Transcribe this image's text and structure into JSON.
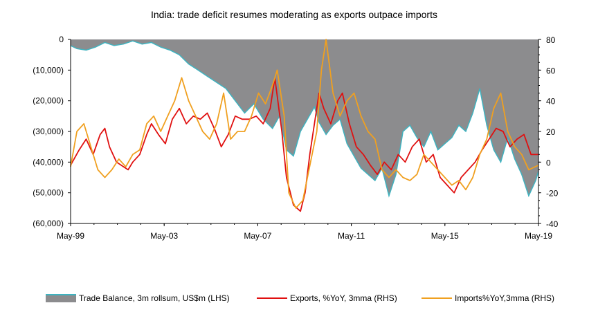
{
  "chart_data": {
    "type": "area+line",
    "title": "India: trade deficit resumes moderating as exports outpace imports",
    "x_tick_labels": [
      "May-99",
      "May-03",
      "May-07",
      "May-11",
      "May-15",
      "May-19"
    ],
    "x_range": [
      1999.33,
      2019.42
    ],
    "left_axis": {
      "ylim": [
        -60000,
        0
      ],
      "tick_values": [
        0,
        -10000,
        -20000,
        -30000,
        -40000,
        -50000,
        -60000
      ],
      "tick_labels": [
        "0",
        "(10,000)",
        "(20,000)",
        "(30,000)",
        "(40,000)",
        "(50,000)",
        "(60,000)"
      ]
    },
    "right_axis": {
      "ylim": [
        -40,
        80
      ],
      "tick_values": [
        80,
        60,
        40,
        20,
        0,
        -20,
        -40
      ],
      "tick_labels": [
        "80",
        "60",
        "40",
        "20",
        "0",
        "-20",
        "-40"
      ]
    },
    "series": [
      {
        "name": "Trade Balance, 3m rollsum, US$m (LHS)",
        "axis": "left",
        "kind": "area",
        "color": "#8c8c8e",
        "edge": "#3fb3c0",
        "x": [
          1999.33,
          1999.6,
          2000.0,
          2000.4,
          2000.8,
          2001.2,
          2001.6,
          2002.0,
          2002.4,
          2002.8,
          2003.2,
          2003.6,
          2004.0,
          2004.4,
          2004.8,
          2005.2,
          2005.6,
          2006.0,
          2006.4,
          2006.8,
          2007.2,
          2007.6,
          2008.0,
          2008.3,
          2008.6,
          2008.9,
          2009.2,
          2009.5,
          2009.8,
          2010.0,
          2010.3,
          2010.6,
          2010.9,
          2011.2,
          2011.5,
          2011.8,
          2012.1,
          2012.4,
          2012.7,
          2013.0,
          2013.3,
          2013.6,
          2013.9,
          2014.2,
          2014.5,
          2014.8,
          2015.1,
          2015.4,
          2015.7,
          2016.0,
          2016.3,
          2016.6,
          2016.9,
          2017.2,
          2017.5,
          2017.8,
          2018.1,
          2018.4,
          2018.7,
          2019.0,
          2019.3,
          2019.42
        ],
        "values": [
          -2000,
          -3000,
          -3500,
          -2500,
          -1000,
          -2000,
          -1500,
          -500,
          -1500,
          -1000,
          -2500,
          -3500,
          -5000,
          -8000,
          -10000,
          -12000,
          -14000,
          -16000,
          -20000,
          -24000,
          -21000,
          -26000,
          -29000,
          -25000,
          -36000,
          -38000,
          -30000,
          -26000,
          -22000,
          -27000,
          -31000,
          -28000,
          -26000,
          -34000,
          -38000,
          -42000,
          -44000,
          -46000,
          -42000,
          -51000,
          -44000,
          -30000,
          -28000,
          -32000,
          -35000,
          -30000,
          -36000,
          -34000,
          -32000,
          -28000,
          -30000,
          -24000,
          -16000,
          -28000,
          -36000,
          -40000,
          -32000,
          -39000,
          -44000,
          -51000,
          -46000,
          -43000
        ]
      },
      {
        "name": "Exports, %YoY, 3mma (RHS)",
        "axis": "right",
        "kind": "line",
        "color": "#e01010",
        "x": [
          1999.33,
          1999.7,
          2000.0,
          2000.3,
          2000.6,
          2000.8,
          2001.0,
          2001.3,
          2001.6,
          2001.8,
          2002.0,
          2002.3,
          2002.6,
          2002.8,
          2003.1,
          2003.4,
          2003.7,
          2004.0,
          2004.3,
          2004.6,
          2004.9,
          2005.2,
          2005.5,
          2005.8,
          2006.1,
          2006.4,
          2006.7,
          2007.0,
          2007.3,
          2007.6,
          2007.9,
          2008.1,
          2008.4,
          2008.6,
          2008.9,
          2009.2,
          2009.4,
          2009.6,
          2009.8,
          2010.0,
          2010.2,
          2010.5,
          2010.8,
          2011.0,
          2011.3,
          2011.6,
          2011.9,
          2012.2,
          2012.5,
          2012.8,
          2013.1,
          2013.4,
          2013.7,
          2014.0,
          2014.3,
          2014.6,
          2014.9,
          2015.2,
          2015.5,
          2015.8,
          2016.1,
          2016.4,
          2016.7,
          2017.0,
          2017.3,
          2017.6,
          2017.9,
          2018.2,
          2018.5,
          2018.8,
          2019.1,
          2019.42
        ],
        "values": [
          -2,
          8,
          15,
          5,
          18,
          22,
          10,
          0,
          -3,
          -5,
          0,
          5,
          18,
          25,
          18,
          12,
          28,
          35,
          25,
          30,
          28,
          32,
          22,
          10,
          18,
          30,
          28,
          28,
          30,
          25,
          35,
          55,
          20,
          -10,
          -28,
          -32,
          -20,
          5,
          25,
          45,
          35,
          25,
          40,
          45,
          25,
          10,
          5,
          -2,
          -8,
          0,
          -5,
          5,
          0,
          10,
          15,
          0,
          5,
          -10,
          -15,
          -20,
          -10,
          -5,
          0,
          8,
          15,
          22,
          20,
          10,
          15,
          18,
          5,
          5
        ]
      },
      {
        "name": "Imports%YoY,3mma (RHS)",
        "axis": "right",
        "kind": "line",
        "color": "#f0a020",
        "x": [
          1999.33,
          1999.6,
          1999.9,
          2000.2,
          2000.5,
          2000.8,
          2001.1,
          2001.4,
          2001.7,
          2002.0,
          2002.3,
          2002.6,
          2002.9,
          2003.2,
          2003.5,
          2003.8,
          2004.1,
          2004.4,
          2004.7,
          2005.0,
          2005.3,
          2005.6,
          2005.9,
          2006.2,
          2006.5,
          2006.8,
          2007.1,
          2007.4,
          2007.7,
          2008.0,
          2008.2,
          2008.5,
          2008.7,
          2009.0,
          2009.3,
          2009.5,
          2009.7,
          2009.9,
          2010.1,
          2010.3,
          2010.6,
          2010.9,
          2011.2,
          2011.5,
          2011.8,
          2012.1,
          2012.4,
          2012.7,
          2013.0,
          2013.3,
          2013.6,
          2013.9,
          2014.2,
          2014.5,
          2014.8,
          2015.1,
          2015.4,
          2015.7,
          2016.0,
          2016.3,
          2016.6,
          2016.9,
          2017.2,
          2017.5,
          2017.8,
          2018.1,
          2018.4,
          2018.7,
          2019.0,
          2019.42
        ],
        "values": [
          -3,
          20,
          25,
          10,
          -5,
          -10,
          -5,
          2,
          -3,
          5,
          8,
          25,
          30,
          20,
          30,
          40,
          55,
          40,
          30,
          20,
          15,
          25,
          45,
          15,
          20,
          20,
          30,
          45,
          38,
          50,
          60,
          30,
          -20,
          -30,
          -25,
          -10,
          5,
          20,
          60,
          80,
          45,
          30,
          40,
          45,
          30,
          20,
          15,
          -5,
          -10,
          -5,
          -10,
          -12,
          -8,
          5,
          0,
          -5,
          -10,
          -15,
          -12,
          -18,
          -10,
          5,
          15,
          35,
          45,
          20,
          10,
          5,
          -5,
          -2
        ]
      }
    ],
    "legend_placement": "bottom"
  }
}
